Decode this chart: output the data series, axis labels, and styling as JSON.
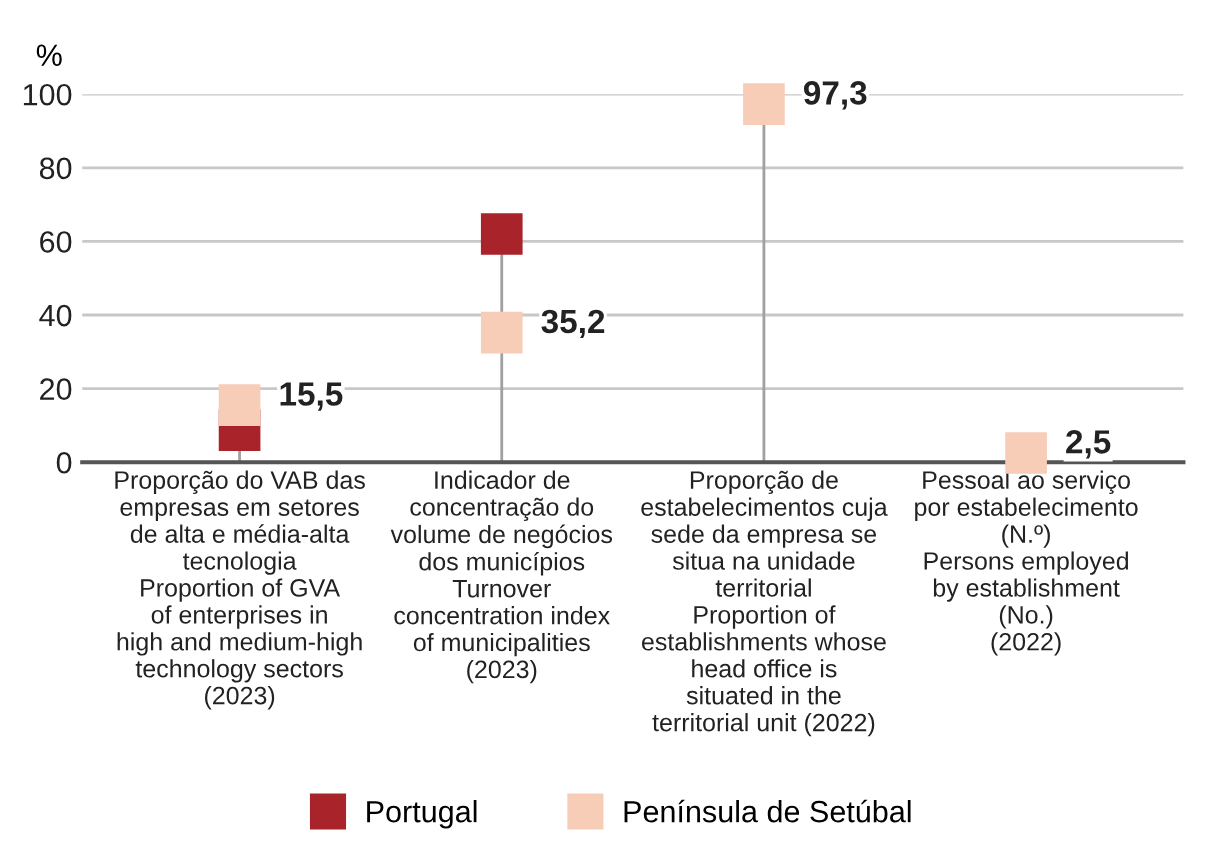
{
  "chart_data": {
    "type": "lollipop",
    "ylabel": "%",
    "categories": [
      "Proporção do VAB das\nempresas em setores\nde alta e média-alta\ntecnologia\nProportion of GVA\nof enterprises in\nhigh and medium-high\ntechnology sectors\n(2023)",
      "Indicador de\nconcentração do\nvolume de negócios\ndos municípios\nTurnover\nconcentration index\nof municipalities\n(2023)",
      "Proporção de\nestabelecimentos cuja\nsede da empresa se\nsitua na unidade\nterritorial\nProportion of\nestablishments whose\nhead office is\nsituated in the\nterritorial unit (2022)",
      "Pessoal ao serviço\npor estabelecimento\n(N.º)\nPersons employed\nby establishment\n(No.)\n(2022)"
    ],
    "series": [
      {
        "name": "Portugal",
        "color": "#a8232a",
        "values": [
          8.7,
          62,
          null,
          null
        ]
      },
      {
        "name": "Península de Setúbal",
        "color": "#f8cdb8",
        "values": [
          15.5,
          35.2,
          97.3,
          2.5
        ],
        "value_labels": [
          "15,5",
          "35,2",
          "97,3",
          "2,5"
        ]
      }
    ],
    "ylim": [
      0,
      100
    ],
    "yticks": [
      0,
      20,
      40,
      60,
      80,
      100
    ],
    "grid": "y",
    "legend": "bottom",
    "marker": "square"
  }
}
